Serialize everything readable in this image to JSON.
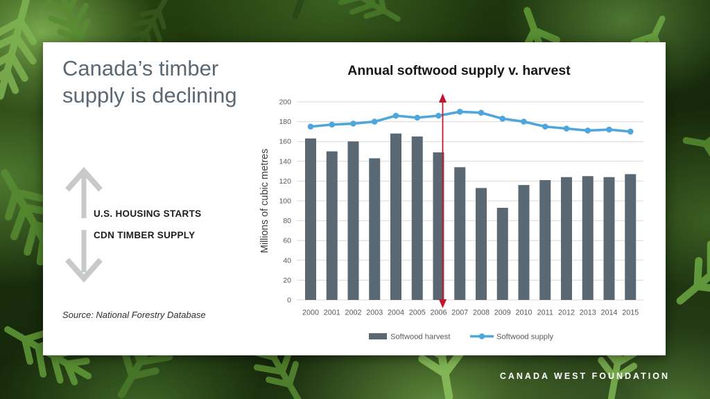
{
  "slide": {
    "headline": "Canada’s timber supply is declining",
    "arrow_up_label": "U.S. HOUSING STARTS",
    "arrow_down_label": "CDN TIMBER SUPPLY",
    "source": "Source: National Forestry Database",
    "footer_brand": "CANADA WEST FOUNDATION"
  },
  "colors": {
    "headline": "#5a6874",
    "arrow_gray": "#c7c9cb",
    "harvest_bar": "#596872",
    "supply_line": "#4fa6db",
    "annotation_red": "#c3162e",
    "gridline": "#d9d9d9",
    "axis_text": "#595959"
  },
  "chart_data": {
    "type": "bar",
    "title": "Annual softwood supply v. harvest",
    "xlabel": "",
    "ylabel": "Millions of cubic metres",
    "ylim": [
      0,
      200
    ],
    "ytick_step": 20,
    "grid": true,
    "legend_position": "bottom",
    "categories": [
      "2000",
      "2001",
      "2002",
      "2003",
      "2004",
      "2005",
      "2006",
      "2007",
      "2008",
      "2009",
      "2010",
      "2011",
      "2012",
      "2013",
      "2014",
      "2015"
    ],
    "series": [
      {
        "name": "Softwood harvest",
        "type": "bar",
        "color": "#596872",
        "values": [
          163,
          150,
          160,
          143,
          168,
          165,
          149,
          134,
          113,
          93,
          116,
          121,
          124,
          125,
          124,
          127
        ]
      },
      {
        "name": "Softwood supply",
        "type": "line",
        "color": "#4fa6db",
        "values": [
          175,
          177,
          178,
          180,
          186,
          184,
          186,
          190,
          189,
          183,
          180,
          175,
          173,
          171,
          172,
          170
        ]
      }
    ],
    "annotation": {
      "type": "vertical-double-arrow",
      "category": "2006",
      "color": "#c3162e"
    }
  }
}
